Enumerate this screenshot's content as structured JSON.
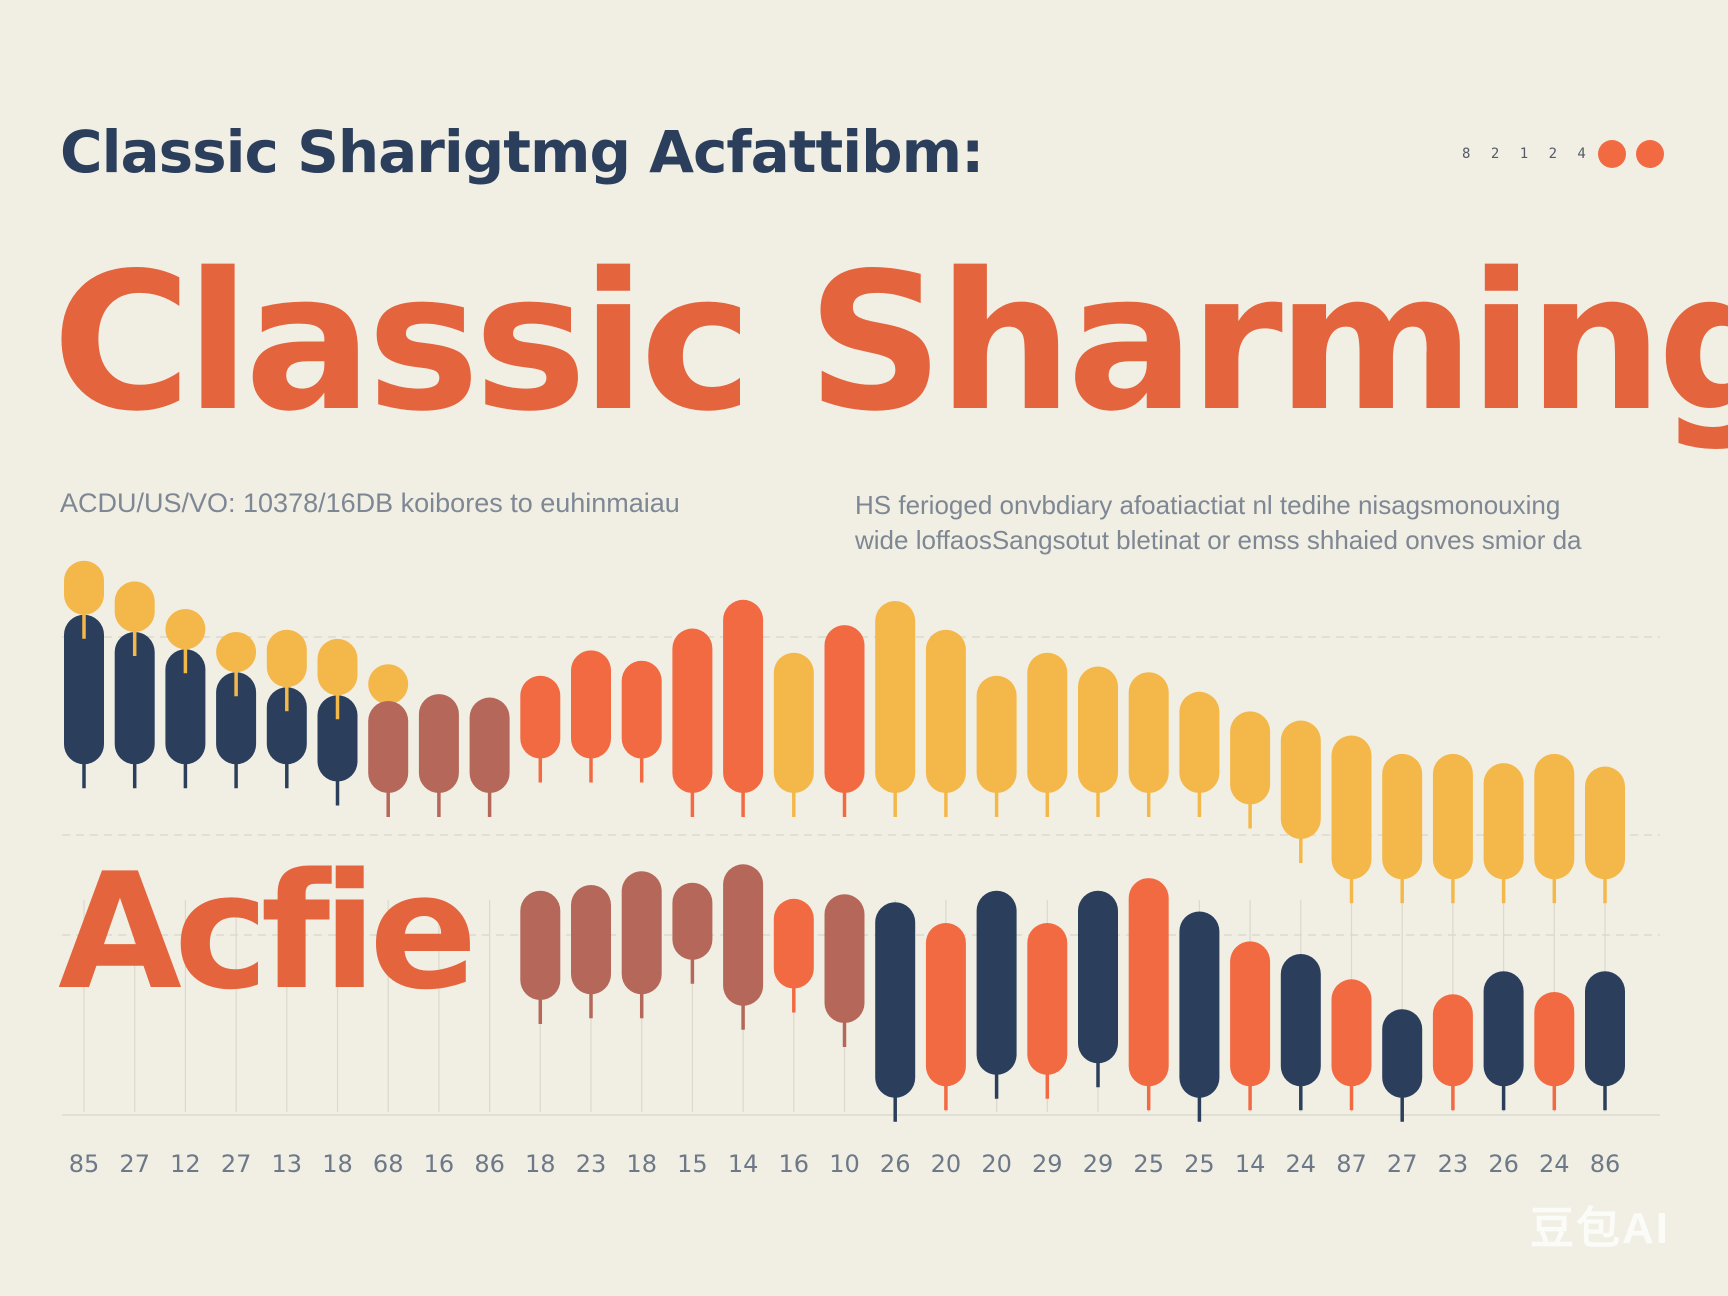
{
  "header": {
    "title": "Classic   Sharigtmg Acfattibm:",
    "page_marker": "8 2 1 2 4",
    "dot_colors": [
      "#f26a42",
      "#f26a42"
    ]
  },
  "headline": "Classic Sharming",
  "subtitle_left": "ACDU/US/VO: 10378/16DB koibores to euhinmaiau",
  "subtitle_right": [
    "HS ferioged onvbdiary afoatiactiat nl tedihe nisagsmonouxing",
    "wide loffaosSangsotut bletinat or emss shhaied onves smior da"
  ],
  "chart_overlay_text": "Acfie",
  "watermark": "豆包AI",
  "colors": {
    "navy": "#2b3f5c",
    "yellow": "#f4b84a",
    "orange": "#f26a42",
    "brown": "#b5675a",
    "orange_text": "#e4643e",
    "grid": "#dcd8cc"
  },
  "chart_data": {
    "type": "bar",
    "categories": [
      "85",
      "27",
      "12",
      "27",
      "13",
      "18",
      "68",
      "16",
      "86",
      "18",
      "23",
      "18",
      "15",
      "14",
      "16",
      "10",
      "26",
      "20",
      "20",
      "29",
      "29",
      "25",
      "25",
      "14",
      "24",
      "87",
      "27",
      "23",
      "26",
      "24",
      "86"
    ],
    "series": [
      {
        "color": "navy",
        "ranges": [
          [
            565,
            695
          ],
          [
            580,
            695
          ],
          [
            595,
            695
          ],
          [
            615,
            695
          ],
          [
            628,
            695
          ],
          [
            635,
            710
          ],
          null,
          null,
          null,
          null,
          null,
          null,
          null,
          null,
          null,
          null,
          [
            815,
            985
          ],
          null,
          [
            805,
            965
          ],
          null,
          [
            805,
            955
          ],
          null,
          [
            823,
            985
          ],
          null,
          [
            860,
            975
          ],
          null,
          [
            908,
            985
          ],
          null,
          [
            875,
            975
          ],
          null,
          [
            875,
            975
          ]
        ]
      },
      {
        "color": "yellow",
        "ranges": [
          [
            518,
            565
          ],
          [
            536,
            580
          ],
          [
            560,
            595
          ],
          [
            580,
            615
          ],
          [
            578,
            628
          ],
          [
            586,
            635
          ],
          [
            608,
            640
          ],
          null,
          null,
          null,
          null,
          null,
          null,
          null,
          [
            598,
            720
          ],
          null,
          [
            553,
            720
          ],
          [
            578,
            720
          ],
          [
            618,
            720
          ],
          [
            598,
            720
          ],
          [
            610,
            720
          ],
          [
            615,
            720
          ],
          [
            632,
            720
          ],
          [
            649,
            730
          ],
          [
            657,
            760
          ],
          [
            670,
            795
          ],
          [
            686,
            795
          ],
          [
            686,
            795
          ],
          [
            694,
            795
          ],
          [
            686,
            795
          ],
          [
            697,
            795
          ]
        ]
      },
      {
        "color": "orange",
        "ranges": [
          null,
          null,
          null,
          null,
          null,
          null,
          null,
          null,
          null,
          [
            618,
            690
          ],
          [
            596,
            690
          ],
          [
            605,
            690
          ],
          [
            577,
            720
          ],
          [
            552,
            720
          ],
          null,
          [
            574,
            720
          ],
          null,
          [
            833,
            975
          ],
          null,
          [
            833,
            965
          ],
          null,
          [
            794,
            975
          ],
          null,
          [
            849,
            975
          ],
          null,
          [
            882,
            975
          ],
          null,
          [
            895,
            975
          ],
          null,
          [
            893,
            975
          ],
          null
        ]
      },
      {
        "color": "brown",
        "ranges": [
          null,
          null,
          null,
          null,
          null,
          null,
          [
            640,
            720
          ],
          [
            634,
            720
          ],
          [
            637,
            720
          ],
          null,
          null,
          null,
          null,
          null,
          null,
          null,
          null,
          null,
          null,
          null,
          null,
          null,
          null,
          null,
          null,
          null,
          null,
          null,
          null,
          null,
          null
        ]
      },
      {
        "color": "brown",
        "ranges": [
          null,
          null,
          null,
          null,
          null,
          null,
          null,
          null,
          null,
          [
            805,
            900
          ],
          [
            800,
            895
          ],
          [
            788,
            895
          ],
          [
            798,
            865
          ],
          [
            782,
            905
          ],
          null,
          [
            808,
            920
          ],
          null,
          null,
          null,
          null,
          null,
          null,
          null,
          null,
          null,
          null,
          null,
          null,
          null,
          null,
          null
        ]
      },
      {
        "color": "orange",
        "ranges": [
          null,
          null,
          null,
          null,
          null,
          null,
          null,
          null,
          null,
          null,
          null,
          null,
          null,
          null,
          [
            812,
            890
          ],
          null,
          null,
          null,
          null,
          null,
          null,
          null,
          null,
          null,
          null,
          null,
          null,
          null,
          null,
          null,
          null
        ]
      }
    ],
    "ylim": [
      1000,
      500
    ],
    "grid": true,
    "legend": "none"
  }
}
